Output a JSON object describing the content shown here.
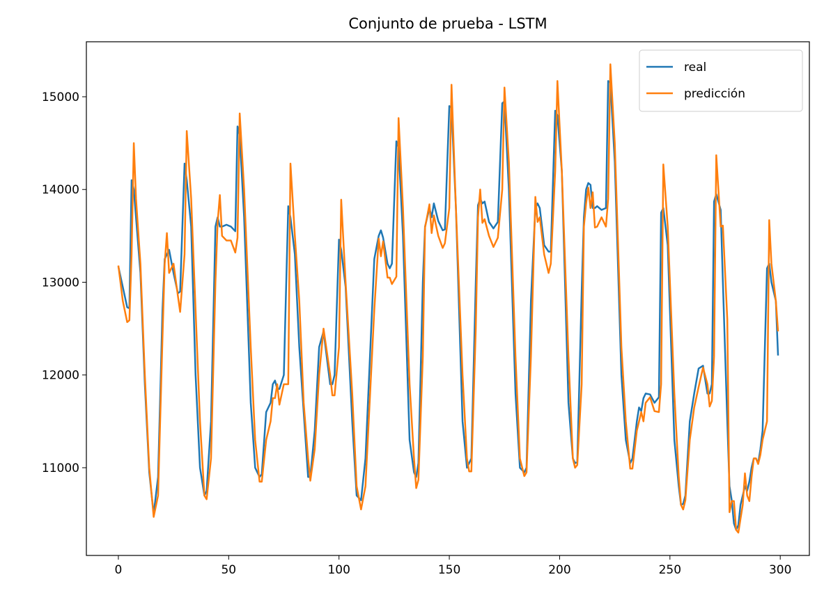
{
  "chart_data": {
    "type": "line",
    "title": "Conjunto de prueba - LSTM",
    "x": [
      0,
      2,
      4,
      5,
      6,
      7,
      8,
      10,
      12,
      14,
      16,
      18,
      20,
      21,
      22,
      23,
      25,
      27,
      28,
      30,
      31,
      33,
      35,
      37,
      39,
      40,
      42,
      44,
      45,
      46,
      47,
      49,
      51,
      53,
      54,
      55,
      57,
      60,
      62,
      64,
      65,
      67,
      69,
      70,
      71,
      72,
      73,
      75,
      77,
      78,
      80,
      82,
      84,
      86,
      87,
      89,
      91,
      93,
      96,
      97,
      98,
      100,
      101,
      103,
      106,
      108,
      110,
      112,
      116,
      118,
      119,
      120,
      122,
      123,
      124,
      126,
      127,
      129,
      132,
      134,
      135,
      136,
      138,
      139,
      141,
      142,
      143,
      145,
      147,
      148,
      150,
      151,
      153,
      156,
      158,
      159,
      160,
      162,
      163,
      164,
      165,
      166,
      168,
      170,
      172,
      174,
      175,
      177,
      180,
      182,
      184,
      185,
      187,
      189,
      190,
      191,
      193,
      195,
      196,
      198,
      199,
      201,
      204,
      206,
      207,
      208,
      210,
      211,
      212,
      213,
      214,
      215,
      216,
      217,
      219,
      221,
      222,
      223,
      225,
      228,
      230,
      232,
      233,
      235,
      236,
      237,
      238,
      239,
      241,
      243,
      245,
      246,
      247,
      249,
      252,
      254,
      255,
      256,
      257,
      259,
      261,
      263,
      265,
      267,
      268,
      269,
      270,
      271,
      273,
      274,
      276,
      277,
      278,
      279,
      280,
      281,
      282,
      283,
      284,
      285,
      286,
      287,
      288,
      289,
      290,
      291,
      292,
      294,
      295,
      296,
      298,
      299
    ],
    "series": [
      {
        "name": "real",
        "color": "#1f77b4",
        "values": [
          13170,
          12950,
          12730,
          12720,
          14100,
          14000,
          13700,
          13100,
          11900,
          10950,
          10500,
          10900,
          12700,
          13250,
          13300,
          13350,
          13100,
          12880,
          12900,
          14280,
          14100,
          13600,
          12000,
          11000,
          10700,
          10750,
          11500,
          13600,
          13700,
          13600,
          13600,
          13620,
          13600,
          13550,
          14680,
          14580,
          13700,
          11700,
          11000,
          10900,
          10930,
          11600,
          11700,
          11900,
          11940,
          11850,
          11850,
          12000,
          13820,
          13700,
          13300,
          12300,
          11600,
          10900,
          10900,
          11400,
          12300,
          12470,
          11900,
          11900,
          12000,
          13460,
          13350,
          12950,
          11500,
          10700,
          10650,
          11100,
          13250,
          13500,
          13560,
          13480,
          13200,
          13150,
          13200,
          14520,
          14450,
          13500,
          11300,
          10950,
          10900,
          11050,
          13000,
          13600,
          13800,
          13700,
          13850,
          13660,
          13560,
          13570,
          14900,
          14880,
          13800,
          11500,
          11000,
          11050,
          11100,
          13000,
          13830,
          13900,
          13850,
          13870,
          13650,
          13580,
          13650,
          14930,
          14950,
          14000,
          11800,
          11000,
          10950,
          11000,
          12800,
          13800,
          13850,
          13800,
          13400,
          13330,
          13330,
          14850,
          14800,
          14200,
          11700,
          11100,
          11050,
          11060,
          12900,
          13700,
          14000,
          14070,
          14050,
          13800,
          13800,
          13820,
          13780,
          13800,
          15170,
          15150,
          14300,
          12000,
          11300,
          11050,
          11100,
          11500,
          11650,
          11610,
          11750,
          11800,
          11790,
          11700,
          11760,
          13750,
          13800,
          13400,
          11300,
          10800,
          10600,
          10610,
          10700,
          11500,
          11800,
          12070,
          12100,
          11800,
          11800,
          11900,
          13870,
          13950,
          13780,
          13000,
          11500,
          10800,
          10650,
          10400,
          10330,
          10380,
          10600,
          10700,
          10800,
          10750,
          10850,
          11000,
          11100,
          11100,
          11050,
          11200,
          11400,
          13150,
          13200,
          13000,
          12800,
          12210
        ]
      },
      {
        "name": "predicción",
        "color": "#ff7f0e",
        "values": [
          13180,
          12800,
          12570,
          12590,
          13300,
          14500,
          13900,
          13200,
          12000,
          11000,
          10470,
          10700,
          12400,
          13200,
          13530,
          13100,
          13200,
          12850,
          12680,
          13300,
          14630,
          13900,
          12700,
          11500,
          10700,
          10660,
          11100,
          13000,
          13650,
          13940,
          13500,
          13450,
          13450,
          13320,
          13480,
          14820,
          14000,
          12300,
          11300,
          10850,
          10850,
          11300,
          11500,
          11750,
          11750,
          11900,
          11680,
          11900,
          11900,
          14280,
          13500,
          12800,
          11700,
          11100,
          10860,
          11200,
          12000,
          12500,
          12000,
          11780,
          11780,
          12300,
          13890,
          13000,
          11800,
          10800,
          10550,
          10800,
          12700,
          13470,
          13280,
          13440,
          13050,
          13050,
          12980,
          13060,
          14770,
          13800,
          11900,
          11100,
          10780,
          10870,
          12200,
          13590,
          13840,
          13530,
          13720,
          13500,
          13370,
          13420,
          13800,
          15130,
          13800,
          12000,
          11100,
          10960,
          10960,
          12500,
          13700,
          14000,
          13640,
          13680,
          13500,
          13380,
          13480,
          14000,
          15100,
          14300,
          12200,
          11100,
          10910,
          10950,
          12200,
          13920,
          13650,
          13700,
          13300,
          13100,
          13200,
          14200,
          15170,
          14200,
          12200,
          11100,
          11000,
          11030,
          11900,
          13600,
          13850,
          14020,
          13800,
          13970,
          13590,
          13600,
          13700,
          13600,
          13900,
          15350,
          14500,
          12300,
          11500,
          10990,
          10990,
          11400,
          11500,
          11600,
          11500,
          11700,
          11760,
          11610,
          11600,
          11900,
          14270,
          13600,
          11800,
          10900,
          10600,
          10550,
          10650,
          11300,
          11650,
          11870,
          12080,
          11900,
          11660,
          11720,
          12200,
          14370,
          13600,
          13610,
          12600,
          10520,
          10640,
          10640,
          10330,
          10300,
          10450,
          10600,
          10940,
          10700,
          10640,
          10900,
          11100,
          11100,
          11040,
          11140,
          11300,
          11500,
          13670,
          13200,
          12800,
          12470
        ]
      }
    ],
    "xlim": [
      -14.5,
      313.2
    ],
    "ylim": [
      10054,
      15593
    ],
    "xticks": [
      0,
      50,
      100,
      150,
      200,
      250,
      300
    ],
    "yticks": [
      11000,
      12000,
      13000,
      14000,
      15000
    ],
    "legend": "upper right"
  }
}
